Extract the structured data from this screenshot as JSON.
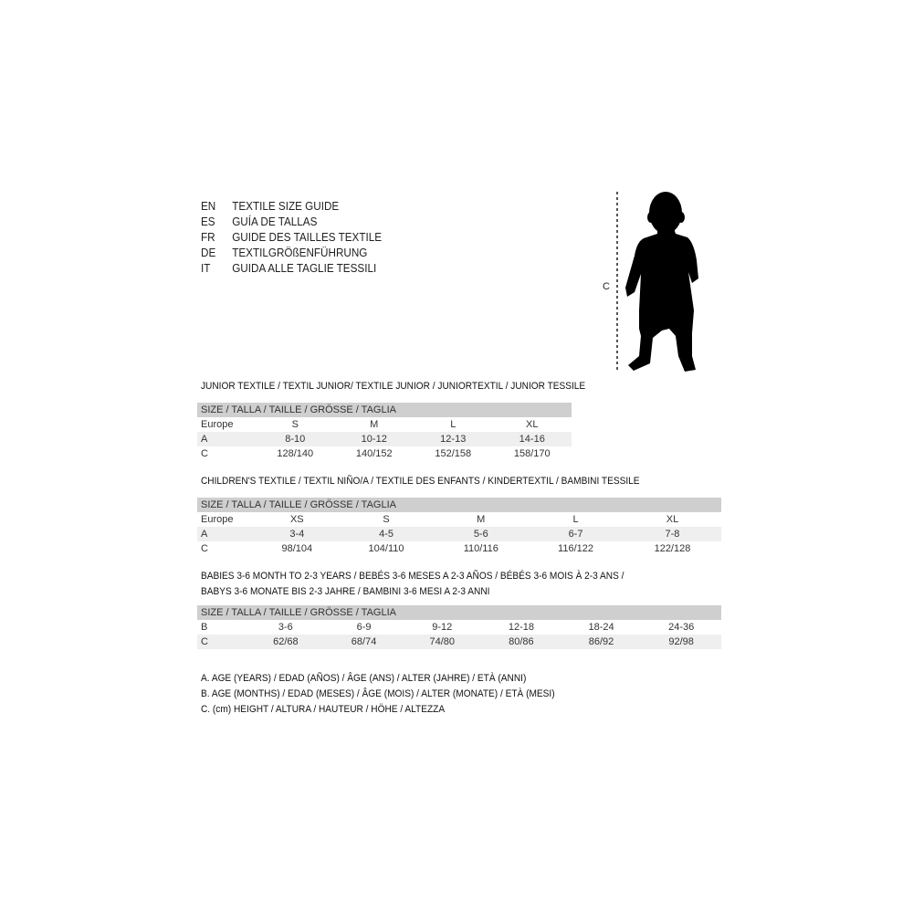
{
  "titles": [
    {
      "code": "EN",
      "text": "TEXTILE SIZE GUIDE"
    },
    {
      "code": "ES",
      "text": "GUÍA DE TALLAS"
    },
    {
      "code": "FR",
      "text": "GUIDE DES TAILLES TEXTILE"
    },
    {
      "code": "DE",
      "text": "TEXTILGRÖßENFÜHRUNG"
    },
    {
      "code": "IT",
      "text": "GUIDA ALLE TAGLIE TESSILI"
    }
  ],
  "figure": {
    "label": "C"
  },
  "size_header": "SIZE / TALLA / TAILLE / GRÖSSE / TAGLIA",
  "junior": {
    "title": "JUNIOR TEXTILE / TEXTIL JUNIOR/ TEXTILE JUNIOR / JUNIORTEXTIL / JUNIOR TESSILE",
    "rows": [
      {
        "label": "Europe",
        "values": [
          "S",
          "M",
          "L",
          "XL"
        ]
      },
      {
        "label": "A",
        "values": [
          "8-10",
          "10-12",
          "12-13",
          "14-16"
        ]
      },
      {
        "label": "C",
        "values": [
          "128/140",
          "140/152",
          "152/158",
          "158/170"
        ]
      }
    ]
  },
  "children": {
    "title": "CHILDREN'S TEXTILE / TEXTIL NIÑO/A / TEXTILE DES ENFANTS / KINDERTEXTIL / BAMBINI TESSILE",
    "rows": [
      {
        "label": "Europe",
        "values": [
          "XS",
          "S",
          "M",
          "L",
          "XL"
        ]
      },
      {
        "label": "A",
        "values": [
          "3-4",
          "4-5",
          "5-6",
          "6-7",
          "7-8"
        ]
      },
      {
        "label": "C",
        "values": [
          "98/104",
          "104/110",
          "110/116",
          "116/122",
          "122/128"
        ]
      }
    ]
  },
  "babies": {
    "title_line1": "BABIES 3-6 MONTH TO 2-3 YEARS / BEBÉS 3-6 MESES A 2-3 AÑOS / BÉBÉS 3-6 MOIS À 2-3 ANS /",
    "title_line2": "BABYS 3-6 MONATE BIS 2-3 JAHRE / BAMBINI 3-6 MESI A 2-3 ANNI",
    "rows": [
      {
        "label": "B",
        "values": [
          "3-6",
          "6-9",
          "9-12",
          "12-18",
          "18-24",
          "24-36"
        ]
      },
      {
        "label": "C",
        "values": [
          "62/68",
          "68/74",
          "74/80",
          "80/86",
          "86/92",
          "92/98"
        ]
      }
    ]
  },
  "legend": [
    "A. AGE (YEARS) / EDAD (AÑOS) / ÂGE (ANS) / ALTER (JAHRE) / ETÀ (ANNI)",
    "B. AGE (MONTHS) / EDAD (MESES) / ÂGE (MOIS) / ALTER (MONATE) / ETÀ (MESI)",
    "C. (cm) HEIGHT / ALTURA / HAUTEUR / HÖHE / ALTEZZA"
  ]
}
